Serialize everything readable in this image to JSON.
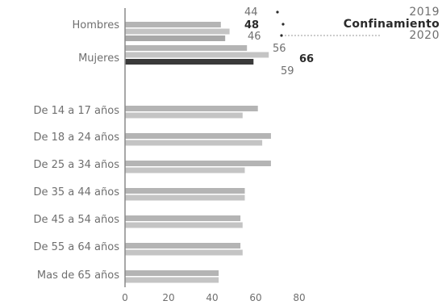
{
  "chart_data": {
    "type": "bar",
    "orientation": "horizontal",
    "title": "",
    "xlabel": "",
    "ylabel": "",
    "xlim": [
      0,
      80
    ],
    "x_ticks": [
      "0",
      "20",
      "40",
      "60",
      "80"
    ],
    "grid": false,
    "legend_position": "top-right",
    "categories": [
      "Hombres",
      "Mujeres",
      "De 14 a 17 años",
      "De 18 a 24 años",
      "De 25 a 34 años",
      "De 35 a 44 años",
      "De 45 a 54 años",
      "De 55 a 64 años",
      "Mas de 65 años"
    ],
    "series": [
      {
        "name": "2019",
        "color": "#b4b4b4",
        "values": [
          44,
          56,
          61,
          67,
          67,
          55,
          53,
          53,
          43
        ],
        "data_labels": [
          "44",
          "56",
          "",
          "",
          "",
          "",
          "",
          "",
          ""
        ]
      },
      {
        "name": "Confinamiento",
        "color": "#c4c4c4",
        "values": [
          48,
          66,
          54,
          63,
          55,
          55,
          54,
          54,
          43
        ],
        "data_labels": [
          "48",
          "66",
          "",
          "",
          "",
          "",
          "",
          "",
          ""
        ]
      },
      {
        "name": "2020",
        "color": "#a8a8a8",
        "values": [
          46,
          59,
          null,
          null,
          null,
          null,
          null,
          null,
          null
        ],
        "data_labels": [
          "46",
          "59",
          "",
          "",
          "",
          "",
          "",
          "",
          ""
        ]
      }
    ],
    "highlight": {
      "category": "Mujeres",
      "series": "2020",
      "color": "#3a3a3a"
    }
  },
  "colors": {
    "text": "#6f6f6f",
    "bold_text": "#2a2a2a",
    "axis": "#8a8a8a",
    "leader": "#9a9a9a"
  }
}
